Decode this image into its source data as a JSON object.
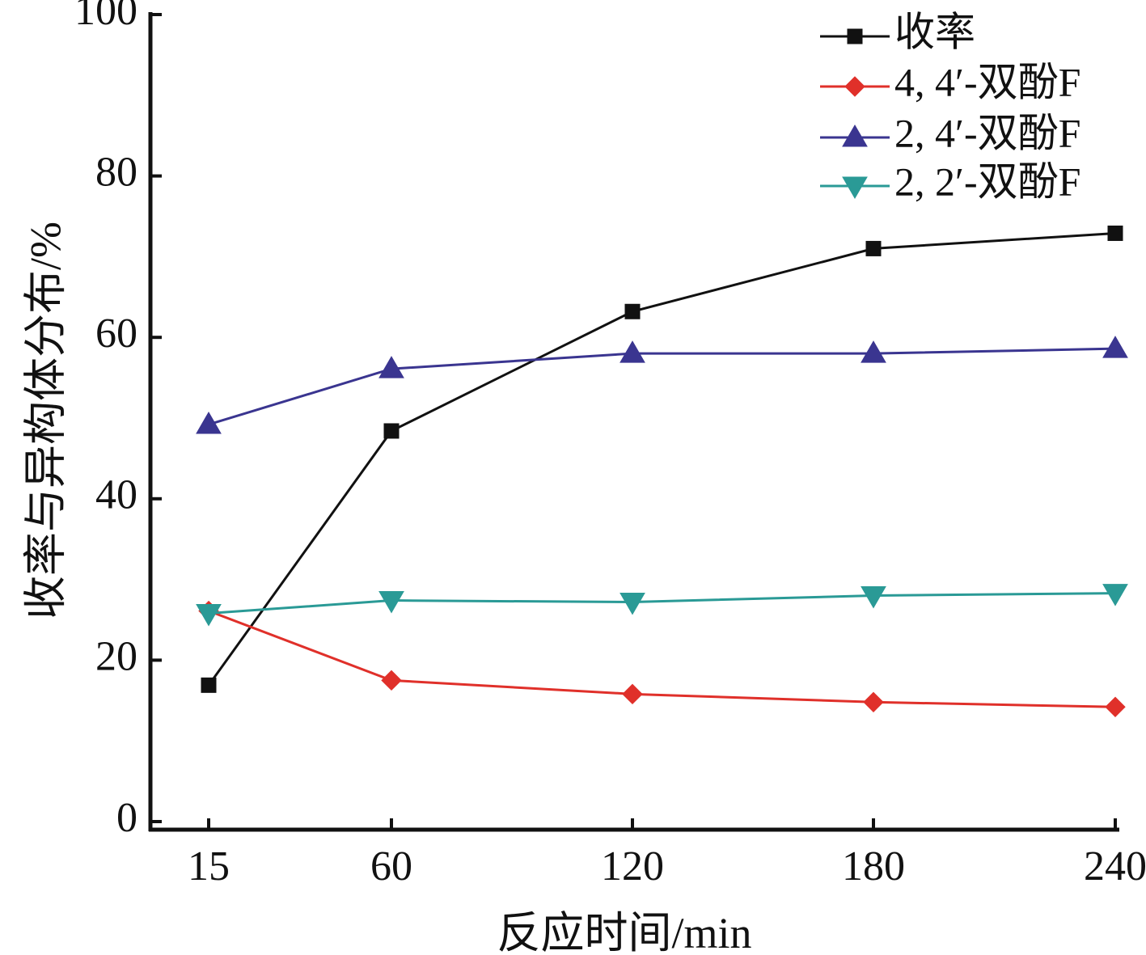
{
  "chart_data": {
    "type": "line",
    "xlabel": "反应时间/min",
    "ylabel": "收率与异构体分布/%",
    "categories": [
      "15",
      "60",
      "120",
      "180",
      "240"
    ],
    "yticks": [
      "0",
      "20",
      "40",
      "60",
      "80",
      "100"
    ],
    "ylim": [
      0,
      100
    ],
    "grid": false,
    "legend_position": "top-right",
    "series": [
      {
        "name": "收率",
        "values": [
          16.9,
          48.4,
          63.2,
          71.0,
          72.9
        ],
        "color": "#111111",
        "marker": "square"
      },
      {
        "name": "4, 4′-双酚F",
        "values": [
          26.1,
          17.5,
          15.8,
          14.8,
          14.2
        ],
        "color": "#e0302a",
        "marker": "diamond"
      },
      {
        "name": "2, 4′-双酚F",
        "values": [
          49.2,
          56.1,
          58.0,
          58.0,
          58.6
        ],
        "color": "#3a3590",
        "marker": "triangle-up"
      },
      {
        "name": "2, 2′-双酚F",
        "values": [
          25.8,
          27.4,
          27.2,
          28.0,
          28.3
        ],
        "color": "#2a9a96",
        "marker": "triangle-down"
      }
    ]
  }
}
